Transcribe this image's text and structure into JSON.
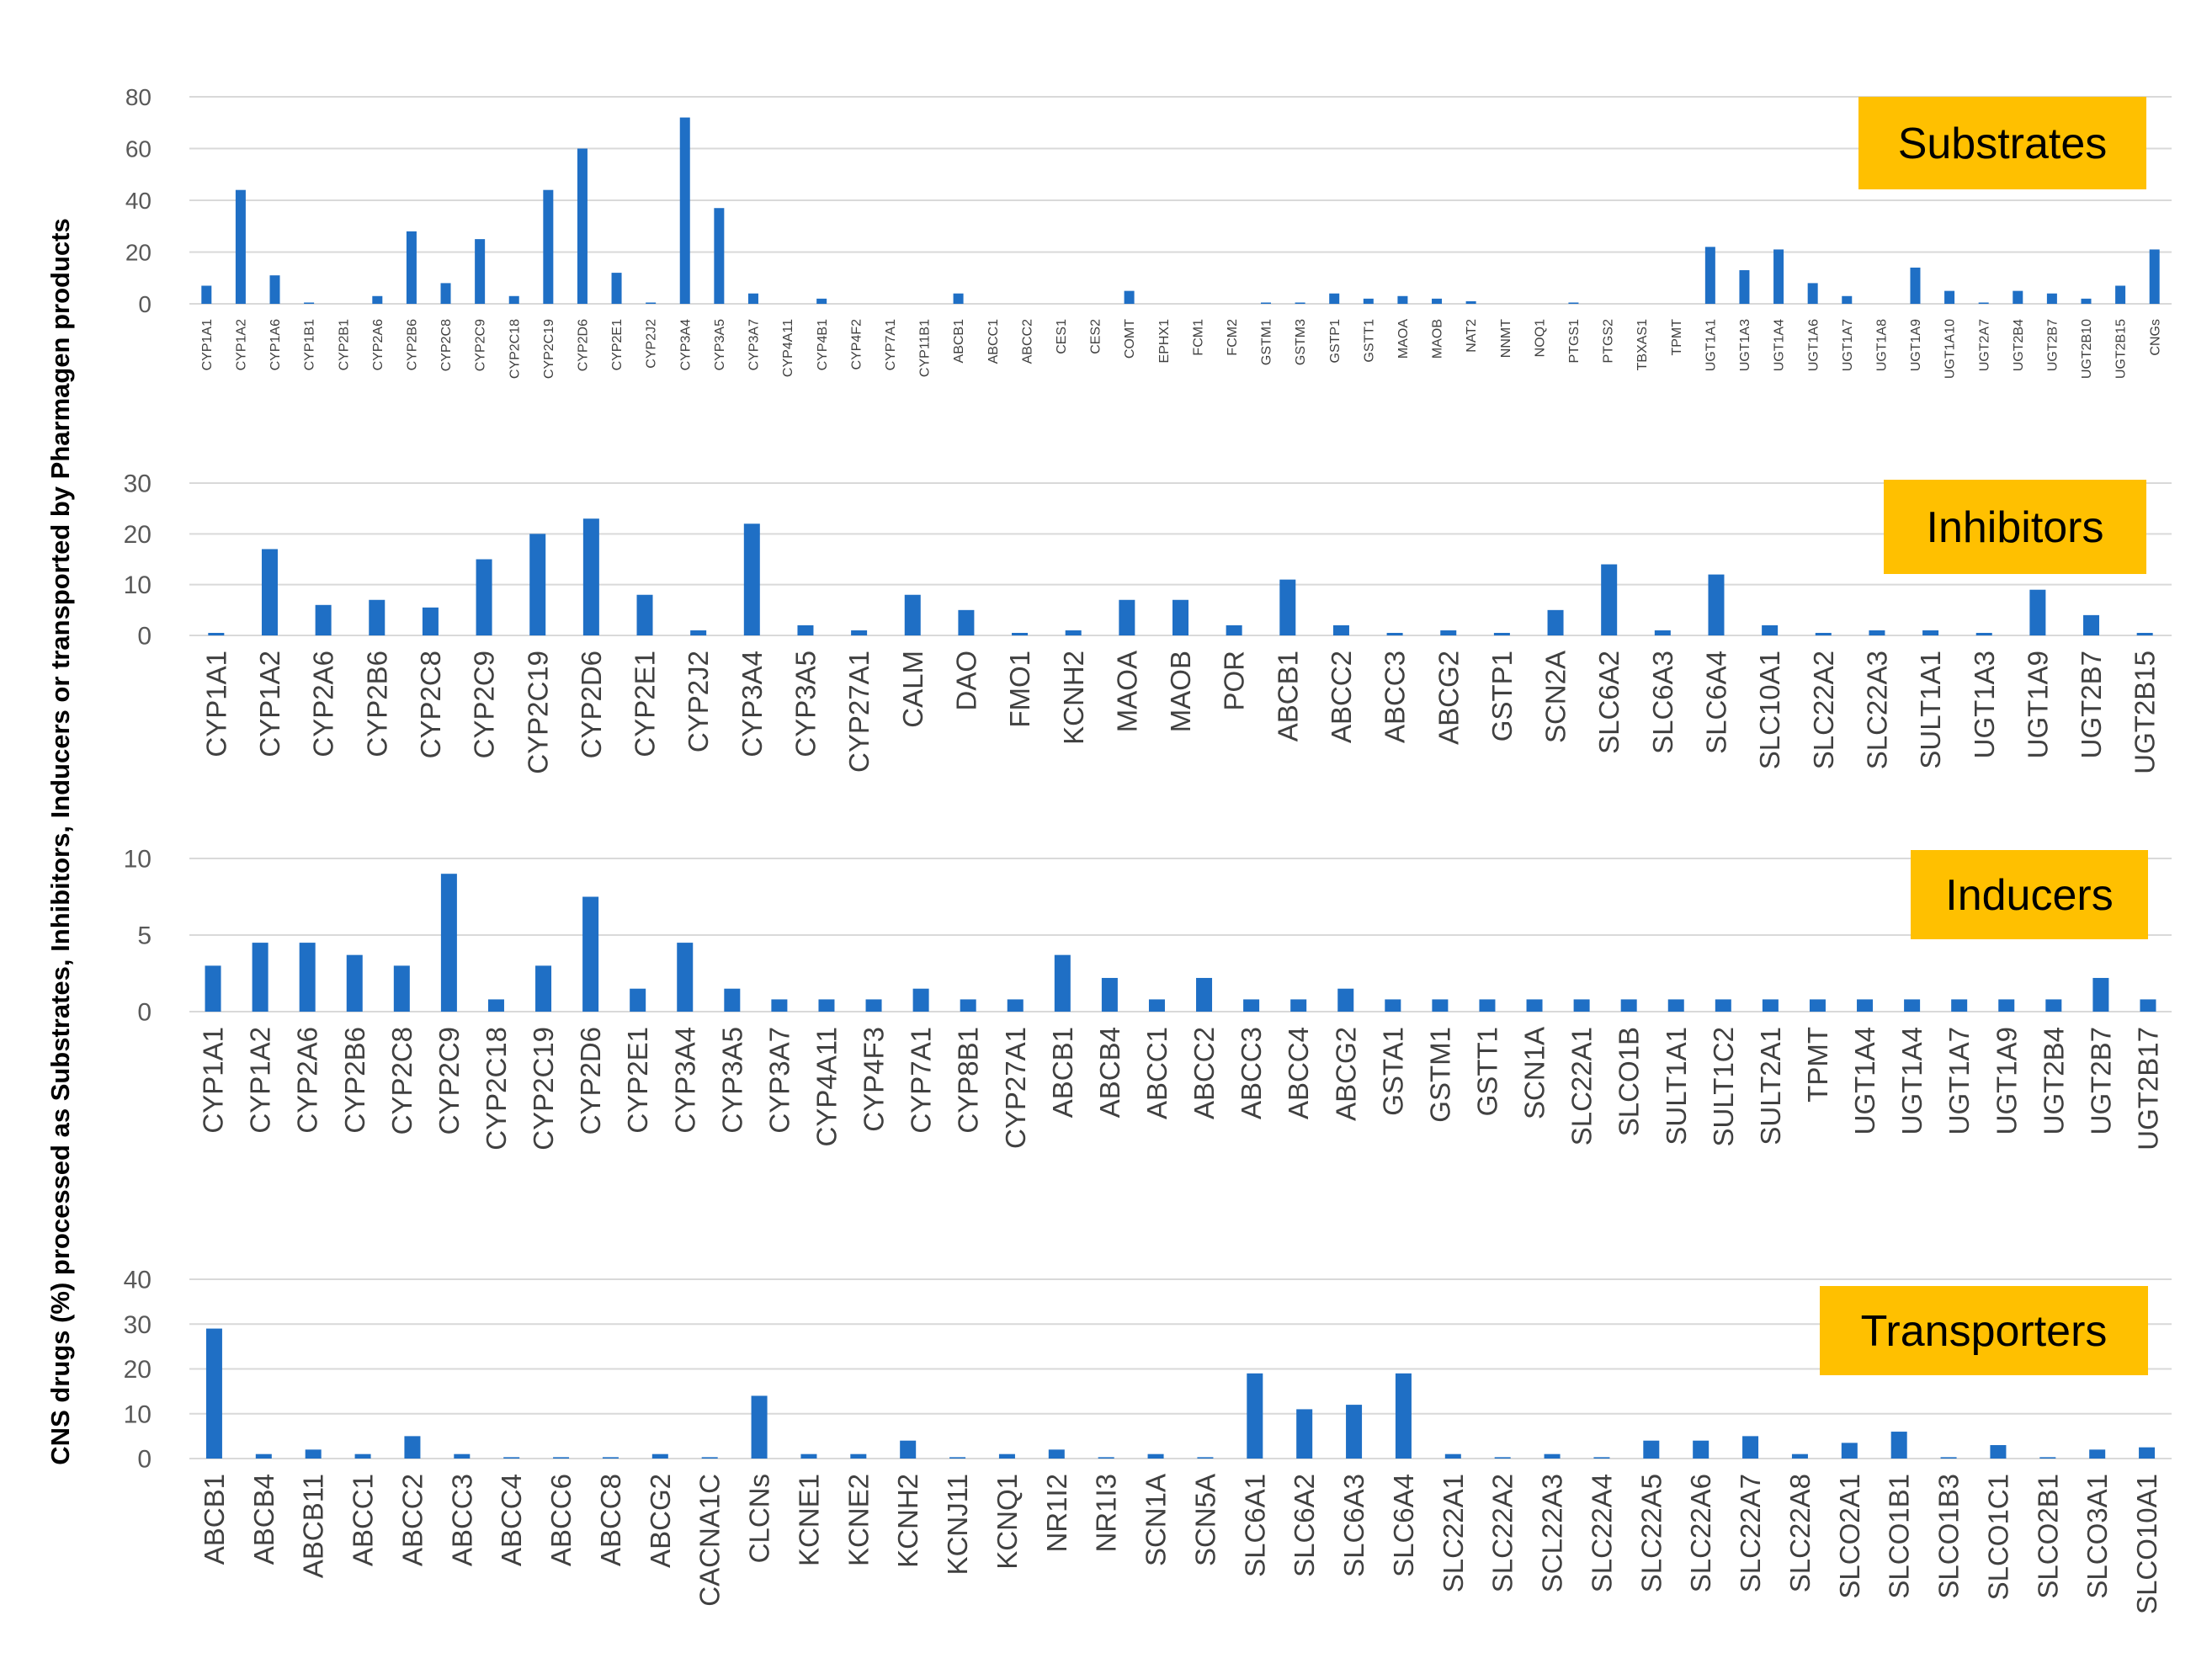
{
  "y_axis_label": "CNS drugs (%) processed as Substrates, Inhibitors, Inducers or transported by Pharmagen products",
  "colors": {
    "bar": "#1F6FC5",
    "label_box": "#FFC000",
    "grid": "#D9D9D9",
    "tick_text": "#595959",
    "cat_text": "#404040"
  },
  "chart_data": [
    {
      "type": "bar",
      "title": "Substrates",
      "ylim": [
        0,
        80
      ],
      "yticks": [
        0,
        20,
        40,
        60,
        80
      ],
      "categories": [
        "CYP1A1",
        "CYP1A2",
        "CYP1A6",
        "CYP1B1",
        "CYP2B1",
        "CYP2A6",
        "CYP2B6",
        "CYP2C8",
        "CYP2C9",
        "CYP2C18",
        "CYP2C19",
        "CYP2D6",
        "CYP2E1",
        "CYP2J2",
        "CYP3A4",
        "CYP3A5",
        "CYP3A7",
        "CYP4A11",
        "CYP4B1",
        "CYP4F2",
        "CYP7A1",
        "CYP11B1",
        "ABCB1",
        "ABCC1",
        "ABCC2",
        "CES1",
        "CES2",
        "COMT",
        "EPHX1",
        "FCM1",
        "FCM2",
        "GSTM1",
        "GSTM3",
        "GSTP1",
        "GSTT1",
        "MAOA",
        "MAOB",
        "NAT2",
        "NNMT",
        "NOQ1",
        "PTGS1",
        "PTGS2",
        "TBXAS1",
        "TPMT",
        "UGT1A1",
        "UGT1A3",
        "UGT1A4",
        "UGT1A6",
        "UGT1A7",
        "UGT1A8",
        "UGT1A9",
        "UGT1A10",
        "UGT2A7",
        "UGT2B4",
        "UGT2B7",
        "UGT2B10",
        "UGT2B15",
        "CNGs"
      ],
      "values": [
        7,
        44,
        11,
        0.5,
        0,
        3,
        28,
        8,
        25,
        3,
        44,
        60,
        12,
        0.5,
        72,
        37,
        4,
        0,
        2,
        0,
        0,
        0,
        4,
        0,
        0,
        0,
        0,
        5,
        0,
        0,
        0,
        0.5,
        0.5,
        4,
        2,
        3,
        2,
        1,
        0,
        0,
        0.5,
        0,
        0,
        0,
        22,
        13,
        21,
        8,
        3,
        0,
        14,
        5,
        0.5,
        5,
        4,
        2,
        7,
        21
      ]
    },
    {
      "type": "bar",
      "title": "Inhibitors",
      "ylim": [
        0,
        30
      ],
      "yticks": [
        0,
        10,
        20,
        30
      ],
      "categories": [
        "CYP1A1",
        "CYP1A2",
        "CYP2A6",
        "CYP2B6",
        "CYP2C8",
        "CYP2C9",
        "CYP2C19",
        "CYP2D6",
        "CYP2E1",
        "CYP2J2",
        "CYP3A4",
        "CYP3A5",
        "CYP27A1",
        "CALM",
        "DAO",
        "FMO1",
        "KCNH2",
        "MAOA",
        "MAOB",
        "POR",
        "ABCB1",
        "ABCC2",
        "ABCC3",
        "ABCG2",
        "GSTP1",
        "SCN2A",
        "SLC6A2",
        "SLC6A3",
        "SLC6A4",
        "SLC10A1",
        "SLC22A2",
        "SLC22A3",
        "SULT1A1",
        "UGT1A3",
        "UGT1A9",
        "UGT2B7",
        "UGT2B15"
      ],
      "values": [
        0.5,
        17,
        6,
        7,
        5.5,
        15,
        20,
        23,
        8,
        1,
        22,
        2,
        1,
        8,
        5,
        0.5,
        1,
        7,
        7,
        2,
        11,
        2,
        0.5,
        1,
        0.5,
        5,
        14,
        1,
        12,
        2,
        0.5,
        1,
        1,
        0.5,
        9,
        4,
        0.5
      ]
    },
    {
      "type": "bar",
      "title": "Inducers",
      "ylim": [
        0,
        10
      ],
      "yticks": [
        0,
        5,
        10
      ],
      "categories": [
        "CYP1A1",
        "CYP1A2",
        "CYP2A6",
        "CYP2B6",
        "CYP2C8",
        "CYP2C9",
        "CYP2C18",
        "CYP2C19",
        "CYP2D6",
        "CYP2E1",
        "CYP3A4",
        "CYP3A5",
        "CYP3A7",
        "CYP4A11",
        "CYP4F3",
        "CYP7A1",
        "CYP8B1",
        "CYP27A1",
        "ABCB1",
        "ABCB4",
        "ABCC1",
        "ABCC2",
        "ABCC3",
        "ABCC4",
        "ABCG2",
        "GSTA1",
        "GSTM1",
        "GSTT1",
        "SCN1A",
        "SLC22A1",
        "SLCO1B",
        "SULT1A1",
        "SULT1C2",
        "SULT2A1",
        "TPMT",
        "UGT1A4",
        "UGT1A4",
        "UGT1A7",
        "UGT1A9",
        "UGT2B4",
        "UGT2B7",
        "UGT2B17"
      ],
      "values": [
        3,
        4.5,
        4.5,
        3.7,
        3,
        9,
        0.8,
        3,
        7.5,
        1.5,
        4.5,
        1.5,
        0.8,
        0.8,
        0.8,
        1.5,
        0.8,
        0.8,
        3.7,
        2.2,
        0.8,
        2.2,
        0.8,
        0.8,
        1.5,
        0.8,
        0.8,
        0.8,
        0.8,
        0.8,
        0.8,
        0.8,
        0.8,
        0.8,
        0.8,
        0.8,
        0.8,
        0.8,
        0.8,
        0.8,
        2.2,
        0.8
      ]
    },
    {
      "type": "bar",
      "title": "Transporters",
      "ylim": [
        0,
        40
      ],
      "yticks": [
        0,
        10,
        20,
        30,
        40
      ],
      "categories": [
        "ABCB1",
        "ABCB4",
        "ABCB11",
        "ABCC1",
        "ABCC2",
        "ABCC3",
        "ABCC4",
        "ABCC6",
        "ABCC8",
        "ABCG2",
        "CACNA1C",
        "CLCNs",
        "KCNE1",
        "KCNE2",
        "KCNH2",
        "KCNJ11",
        "KCNQ1",
        "NR1I2",
        "NR1I3",
        "SCN1A",
        "SCN5A",
        "SLC6A1",
        "SLC6A2",
        "SLC6A3",
        "SLC6A4",
        "SLC22A1",
        "SLC22A2",
        "SCL22A3",
        "SLC22A4",
        "SLC22A5",
        "SLC22A6",
        "SLC22A7",
        "SLC22A8",
        "SLCO2A1",
        "SLCO1B1",
        "SLCO1B3",
        "SLCO1C1",
        "SLCO2B1",
        "SLCO3A1",
        "SLCO10A1"
      ],
      "values": [
        29,
        1,
        2,
        1,
        5,
        1,
        0.3,
        0.3,
        0.3,
        1,
        0.3,
        14,
        1,
        1,
        4,
        0.3,
        1,
        2,
        0.3,
        1,
        0.3,
        19,
        11,
        12,
        19,
        1,
        0.3,
        1,
        0.3,
        4,
        4,
        5,
        1,
        3.5,
        6,
        0.3,
        3,
        0.3,
        2,
        2.5
      ]
    }
  ]
}
